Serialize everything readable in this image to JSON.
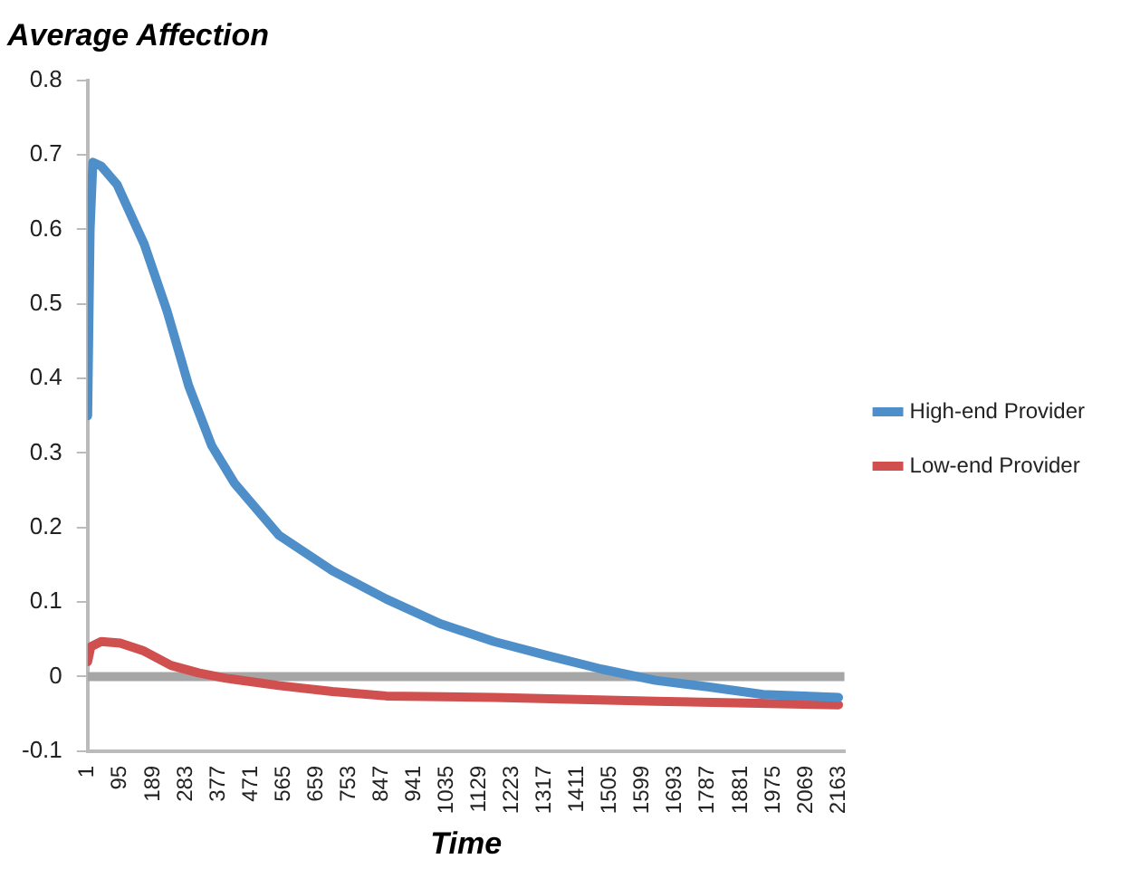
{
  "chart_data": {
    "type": "line",
    "title": "Average Affection",
    "xlabel": "Time",
    "xlim": [
      1,
      2180
    ],
    "xticks": [
      1,
      95,
      189,
      283,
      377,
      471,
      565,
      659,
      753,
      847,
      941,
      1035,
      1129,
      1223,
      1317,
      1411,
      1505,
      1599,
      1693,
      1787,
      1881,
      1975,
      2069,
      2163
    ],
    "ylim": [
      -0.1,
      0.8
    ],
    "yticks": [
      -0.1,
      0,
      0.1,
      0.2,
      0.3,
      0.4,
      0.5,
      0.6,
      0.7,
      0.8
    ],
    "series": [
      {
        "name": "High-end Provider",
        "color": "#4f8fc9",
        "x": [
          1,
          8,
          16,
          40,
          86,
          164,
          230,
          292,
          358,
          423,
          551,
          706,
          861,
          1016,
          1171,
          1326,
          1481,
          1636,
          1791,
          1946,
          2163
        ],
        "values": [
          0.35,
          0.6,
          0.69,
          0.685,
          0.66,
          0.58,
          0.49,
          0.39,
          0.31,
          0.26,
          0.19,
          0.142,
          0.104,
          0.071,
          0.047,
          0.028,
          0.01,
          -0.005,
          -0.014,
          -0.024,
          -0.028
        ]
      },
      {
        "name": "Low-end Provider",
        "color": "#d0504f",
        "x": [
          1,
          10,
          40,
          95,
          160,
          241,
          320,
          396,
          551,
          706,
          861,
          1171,
          1636,
          2163
        ],
        "values": [
          0.02,
          0.04,
          0.047,
          0.045,
          0.035,
          0.015,
          0.005,
          -0.002,
          -0.012,
          -0.02,
          -0.026,
          -0.028,
          -0.033,
          -0.038
        ]
      }
    ],
    "ref_lines": [
      {
        "axis": "y",
        "value": 0,
        "color": "#a6a6a6"
      }
    ],
    "grid": false,
    "legend": "right",
    "marker": "none",
    "line_style": "solid"
  }
}
